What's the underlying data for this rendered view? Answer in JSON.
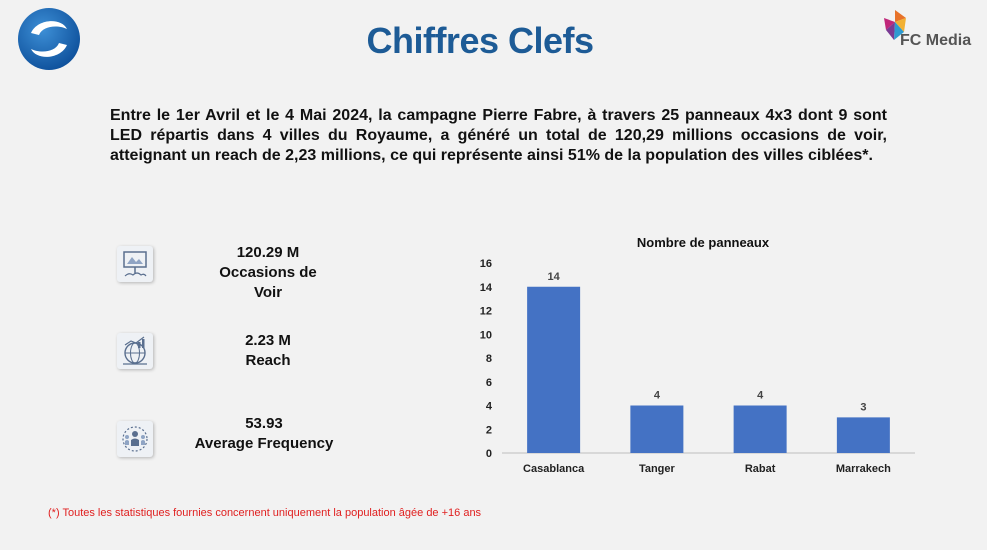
{
  "header": {
    "title": "Chiffres Clefs",
    "partner_logo_text": "FC Media"
  },
  "summary": {
    "text": "Entre le 1er Avril et le 4 Mai 2024, la campagne Pierre Fabre, à travers 25 panneaux 4x3 dont 9 sont LED répartis dans 4 villes du Royaume, a généré un total de 120,29 millions occasions de voir, atteignant un reach de 2,23 millions, ce qui représente ainsi 51% de la population des villes ciblées*."
  },
  "kpis": [
    {
      "value": "120.29 M",
      "label_line1": "Occasions de",
      "label_line2": "Voir",
      "icon": "billboard-icon"
    },
    {
      "value": "2.23 M",
      "label_line1": "Reach",
      "label_line2": "",
      "icon": "globe-chart-icon"
    },
    {
      "value": "53.93",
      "label_line1": "Average Frequency",
      "label_line2": "",
      "icon": "audience-icon"
    }
  ],
  "chart_data": {
    "type": "bar",
    "title": "Nombre de panneaux",
    "categories": [
      "Casablanca",
      "Tanger",
      "Rabat",
      "Marrakech"
    ],
    "values": [
      14,
      4,
      4,
      3
    ],
    "ylim": [
      0,
      16
    ],
    "yticks": [
      0,
      2,
      4,
      6,
      8,
      10,
      12,
      14,
      16
    ],
    "grid": false,
    "bar_color": "#4472c4",
    "data_labels": true
  },
  "footnote": "(*) Toutes les statistiques fournies concernent uniquement la population âgée de +16 ans",
  "colors": {
    "title": "#1d5b96",
    "footnote": "#e02020",
    "background": "#f2f2f2"
  }
}
